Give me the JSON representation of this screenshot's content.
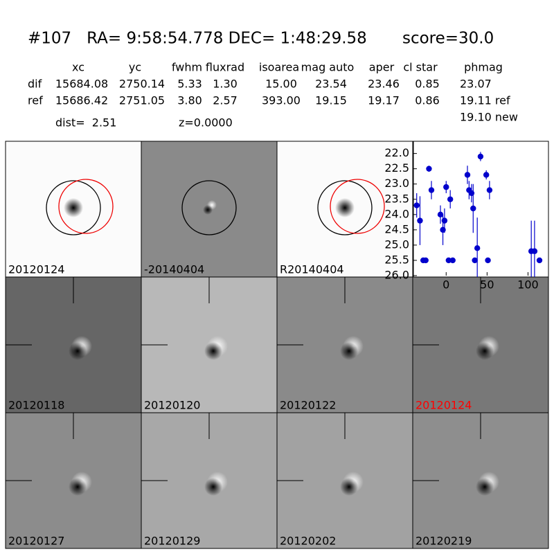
{
  "header": {
    "title": "#107   RA= 9:58:54.778 DEC= 1:48:29.58       score=30.0",
    "table": {
      "columns": [
        "xc",
        "yc",
        "fwhm",
        "fluxrad",
        "isoarea",
        "mag auto",
        "aper",
        "cl star",
        "phmag"
      ],
      "rows": [
        [
          "dif",
          "15684.08",
          "2750.14",
          "5.33",
          "1.30",
          "15.00",
          "23.54",
          "23.46",
          "0.85",
          "23.07"
        ],
        [
          "ref",
          "15686.42",
          "2751.05",
          "3.80",
          "2.57",
          "393.00",
          "19.15",
          "19.17",
          "0.86",
          "19.11 ref"
        ]
      ],
      "extra": "19.10 new"
    },
    "dist": "dist=  2.51",
    "z": "z=0.0000"
  },
  "stamps": [
    {
      "label": "20120124",
      "style": "ref"
    },
    {
      "label": "-20140404",
      "style": "diff"
    },
    {
      "label": "R20140404",
      "style": "ref"
    },
    {
      "label": "20120118",
      "style": "epoch",
      "background": "#666666"
    },
    {
      "label": "20120120",
      "style": "epoch",
      "background": "#b8b8b8"
    },
    {
      "label": "20120122",
      "style": "epoch",
      "background": "#8a8a8a"
    },
    {
      "label": "20120124",
      "style": "epoch",
      "background": "#787878",
      "label_color": "#ff0000"
    },
    {
      "label": "20120127",
      "style": "epoch",
      "background": "#8c8c8c"
    },
    {
      "label": "20120129",
      "style": "epoch",
      "background": "#a8a8a8"
    },
    {
      "label": "20120202",
      "style": "epoch",
      "background": "#a2a2a2"
    },
    {
      "label": "20120219",
      "style": "epoch",
      "background": "#8e8e8e"
    }
  ],
  "chart_data": {
    "type": "scatter",
    "color": "#0000cc",
    "x": [
      -36,
      -32,
      -28,
      -25,
      -21,
      -18,
      -7,
      -4,
      -2,
      0,
      3,
      5,
      8,
      26,
      28,
      31,
      33,
      35,
      38,
      42,
      49,
      51,
      53,
      104,
      108,
      114
    ],
    "values": [
      23.7,
      24.2,
      25.5,
      25.5,
      22.5,
      23.2,
      24.0,
      24.5,
      24.2,
      23.1,
      25.5,
      23.5,
      25.5,
      22.7,
      23.2,
      23.3,
      23.8,
      25.5,
      25.1,
      22.1,
      22.7,
      25.5,
      23.2,
      25.2,
      25.2,
      25.5
    ],
    "errors": [
      0.4,
      0.8,
      0.05,
      0.05,
      0.1,
      0.3,
      0.3,
      0.5,
      0.4,
      0.2,
      0.05,
      0.3,
      0.05,
      0.3,
      0.3,
      0.3,
      0.8,
      0.05,
      1.0,
      0.15,
      0.15,
      0.05,
      0.3,
      1.0,
      1.0,
      0.05
    ],
    "xlim": [
      -40,
      125
    ],
    "ylim": [
      26.0,
      21.6
    ],
    "xticks": [
      0,
      50,
      100
    ],
    "yticks": [
      {
        "value": 22.0,
        "label": "22.0"
      },
      22.5,
      {
        "value": 23.0,
        "label": "23.0"
      },
      23.5,
      {
        "value": 24.0,
        "label": "24.0"
      },
      24.5,
      {
        "value": 25.0,
        "label": "25.0"
      },
      25.5,
      {
        "value": 26.0,
        "label": "26.0"
      }
    ]
  }
}
